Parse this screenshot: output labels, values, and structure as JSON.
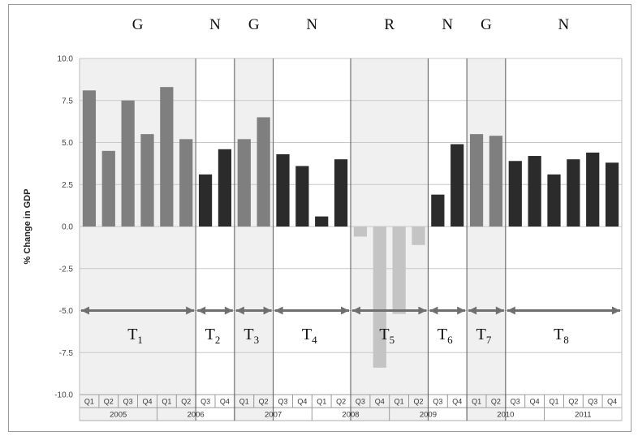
{
  "chart_data": {
    "type": "bar",
    "ylabel": "% Change in GDP",
    "ylim": [
      -10.0,
      10.0
    ],
    "y_ticks": [
      "10.0",
      "7.5",
      "5.0",
      "2.5",
      "0.0",
      "-2.5",
      "-5.0",
      "-7.5",
      "-10.0"
    ],
    "y_tick_values": [
      10.0,
      7.5,
      5.0,
      2.5,
      0.0,
      -2.5,
      -5.0,
      -7.5,
      -10.0
    ],
    "grid": true,
    "categories": [
      "Q1",
      "Q2",
      "Q3",
      "Q4",
      "Q1",
      "Q2",
      "Q3",
      "Q4",
      "Q1",
      "Q2",
      "Q3",
      "Q4",
      "Q1",
      "Q2",
      "Q3",
      "Q4",
      "Q1",
      "Q2",
      "Q3",
      "Q4",
      "Q1",
      "Q2",
      "Q3",
      "Q4",
      "Q1",
      "Q2",
      "Q3",
      "Q4"
    ],
    "year_labels": [
      {
        "label": "2005",
        "start_index": 0,
        "count": 4
      },
      {
        "label": "2006",
        "start_index": 4,
        "count": 4
      },
      {
        "label": "2007",
        "start_index": 8,
        "count": 4
      },
      {
        "label": "2008",
        "start_index": 12,
        "count": 4
      },
      {
        "label": "2009",
        "start_index": 16,
        "count": 4
      },
      {
        "label": "2010",
        "start_index": 20,
        "count": 4
      },
      {
        "label": "2011",
        "start_index": 24,
        "count": 4
      }
    ],
    "values": [
      8.1,
      4.5,
      7.5,
      5.5,
      8.3,
      5.2,
      3.1,
      4.6,
      5.2,
      6.5,
      4.3,
      3.6,
      0.6,
      4.0,
      -0.6,
      -8.4,
      -5.2,
      -1.1,
      1.9,
      4.9,
      5.5,
      5.4,
      3.9,
      4.2,
      3.1,
      4.0,
      4.4,
      3.8
    ],
    "regime_letters": [
      "G",
      "G",
      "G",
      "G",
      "G",
      "G",
      "N",
      "N",
      "G",
      "G",
      "N",
      "N",
      "N",
      "N",
      "R",
      "R",
      "R",
      "R",
      "N",
      "N",
      "G",
      "G",
      "N",
      "N",
      "N",
      "N",
      "N",
      "N"
    ],
    "periods": [
      {
        "letter": "G",
        "label_base": "T",
        "label_sub": "1",
        "start_index": 0,
        "count": 6,
        "shaded": true
      },
      {
        "letter": "N",
        "label_base": "T",
        "label_sub": "2",
        "start_index": 6,
        "count": 2,
        "shaded": false
      },
      {
        "letter": "G",
        "label_base": "T",
        "label_sub": "3",
        "start_index": 8,
        "count": 2,
        "shaded": true
      },
      {
        "letter": "N",
        "label_base": "T",
        "label_sub": "4",
        "start_index": 10,
        "count": 4,
        "shaded": false
      },
      {
        "letter": "R",
        "label_base": "T",
        "label_sub": "5",
        "start_index": 14,
        "count": 4,
        "shaded": true
      },
      {
        "letter": "N",
        "label_base": "T",
        "label_sub": "6",
        "start_index": 18,
        "count": 2,
        "shaded": false
      },
      {
        "letter": "G",
        "label_base": "T",
        "label_sub": "7",
        "start_index": 20,
        "count": 2,
        "shaded": true
      },
      {
        "letter": "N",
        "label_base": "T",
        "label_sub": "8",
        "start_index": 22,
        "count": 6,
        "shaded": false
      }
    ],
    "arrow_value": -5.0,
    "colors": {
      "G": "#7f7f7f",
      "N": "#2b2b2b",
      "R": "#c4c4c4",
      "shade": "#f0f0f0",
      "grid": "#c8c8c8",
      "arrow": "#6f6f6f"
    }
  }
}
